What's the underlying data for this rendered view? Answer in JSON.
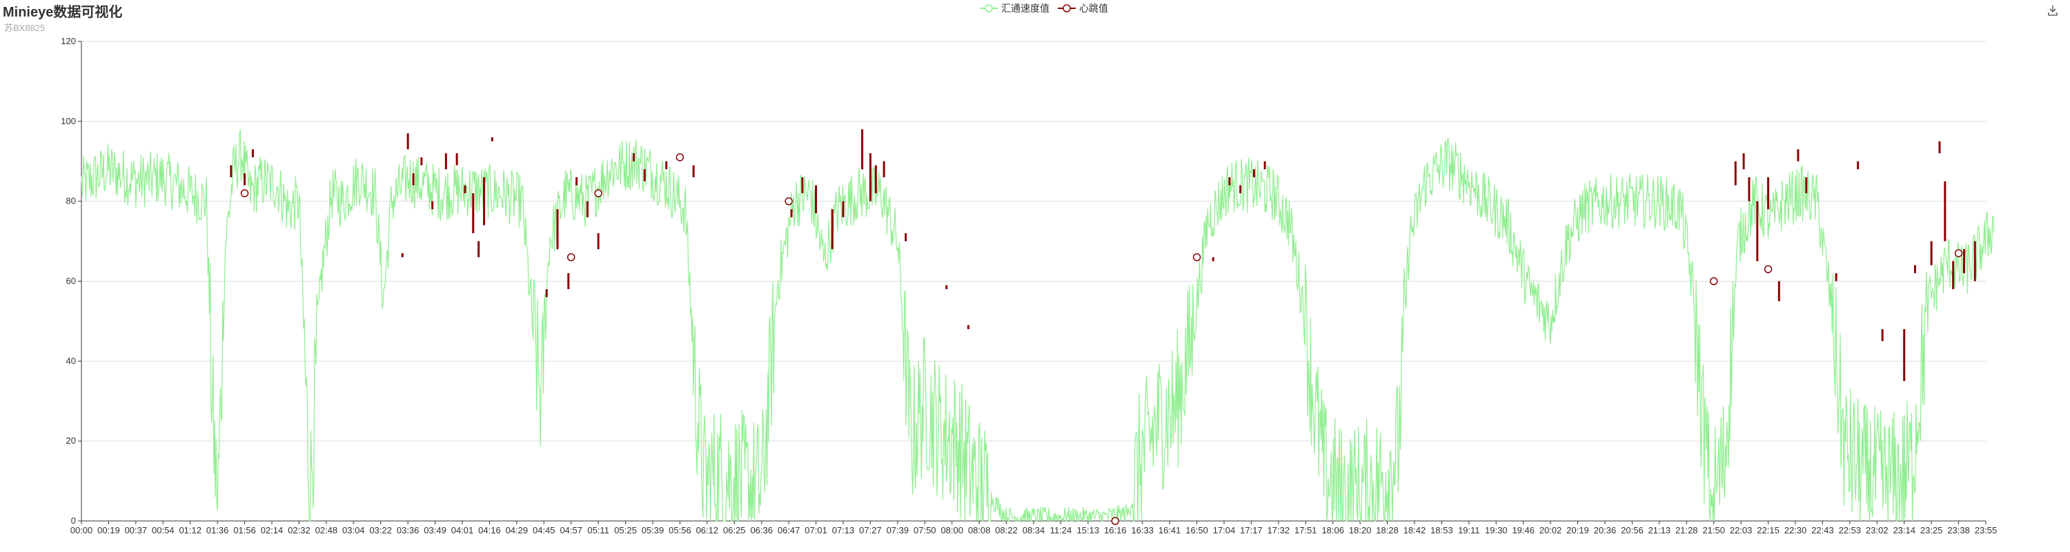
{
  "title": "Minieye数据可视化",
  "subtitle": "苏BX8825",
  "colors": {
    "speed": "#90ee90",
    "heartbeat": "#8b0000",
    "grid": "#dddddd",
    "axis": "#333333"
  },
  "icons": {
    "download": "download-icon"
  },
  "chart_data": {
    "type": "line",
    "title": "Minieye数据可视化",
    "subtitle": "苏BX8825",
    "legend_position": "top-center",
    "grid": true,
    "ylim": [
      0,
      120
    ],
    "yticks": [
      "0",
      "20",
      "40",
      "60",
      "80",
      "100",
      "120"
    ],
    "xticks": [
      "00:00",
      "00:19",
      "00:37",
      "00:54",
      "01:12",
      "01:36",
      "01:56",
      "02:14",
      "02:32",
      "02:48",
      "03:04",
      "03:22",
      "03:36",
      "03:49",
      "04:01",
      "04:16",
      "04:29",
      "04:45",
      "04:57",
      "05:11",
      "05:25",
      "05:39",
      "05:56",
      "06:12",
      "06:25",
      "06:36",
      "06:47",
      "07:01",
      "07:13",
      "07:27",
      "07:39",
      "07:50",
      "08:00",
      "08:08",
      "08:22",
      "08:34",
      "11:24",
      "15:13",
      "16:16",
      "16:33",
      "16:41",
      "16:50",
      "17:04",
      "17:17",
      "17:32",
      "17:51",
      "18:06",
      "18:20",
      "18:28",
      "18:42",
      "18:53",
      "19:11",
      "19:30",
      "19:46",
      "20:02",
      "20:19",
      "20:36",
      "20:56",
      "21:13",
      "21:28",
      "21:50",
      "22:03",
      "22:15",
      "22:30",
      "22:43",
      "22:53",
      "23:02",
      "23:14",
      "23:25",
      "23:38",
      "23:55"
    ],
    "series": [
      {
        "name": "汇通速度值",
        "color": "#90ee90",
        "profile": [
          [
            0,
            84
          ],
          [
            1,
            88
          ],
          [
            2,
            85
          ],
          [
            3,
            86
          ],
          [
            4,
            82
          ],
          [
            4.6,
            80
          ],
          [
            4.8,
            30
          ],
          [
            5.0,
            2
          ],
          [
            5.3,
            70
          ],
          [
            5.6,
            88
          ],
          [
            5.9,
            92
          ],
          [
            6.2,
            82
          ],
          [
            6.6,
            85
          ],
          [
            7.2,
            84
          ],
          [
            7.6,
            78
          ],
          [
            8.0,
            80
          ],
          [
            8.4,
            5
          ],
          [
            8.8,
            60
          ],
          [
            9.2,
            82
          ],
          [
            9.6,
            80
          ],
          [
            10.2,
            86
          ],
          [
            10.8,
            82
          ],
          [
            11.1,
            55
          ],
          [
            11.4,
            80
          ],
          [
            12,
            86
          ],
          [
            12.6,
            84
          ],
          [
            13.2,
            82
          ],
          [
            14.2,
            83
          ],
          [
            15.4,
            82
          ],
          [
            16.2,
            80
          ],
          [
            16.6,
            48
          ],
          [
            16.9,
            30
          ],
          [
            17.2,
            70
          ],
          [
            17.8,
            82
          ],
          [
            18.6,
            80
          ],
          [
            19.4,
            88
          ],
          [
            20.4,
            90
          ],
          [
            21.4,
            85
          ],
          [
            22.2,
            78
          ],
          [
            22.6,
            30
          ],
          [
            22.9,
            10
          ],
          [
            23.4,
            12
          ],
          [
            24.2,
            10
          ],
          [
            25,
            8
          ],
          [
            25.6,
            60
          ],
          [
            26.2,
            80
          ],
          [
            26.8,
            82
          ],
          [
            27.3,
            65
          ],
          [
            27.8,
            78
          ],
          [
            28.6,
            82
          ],
          [
            29.4,
            82
          ],
          [
            30,
            70
          ],
          [
            30.5,
            20
          ],
          [
            31,
            30
          ],
          [
            31.6,
            22
          ],
          [
            32.2,
            20
          ],
          [
            32.7,
            12
          ],
          [
            33.2,
            8
          ],
          [
            34,
            1
          ],
          [
            35.4,
            1
          ],
          [
            36.6,
            1
          ],
          [
            37.6,
            1
          ],
          [
            38.5,
            2
          ],
          [
            38.9,
            15
          ],
          [
            39.6,
            25
          ],
          [
            40.2,
            28
          ],
          [
            40.8,
            45
          ],
          [
            41.4,
            75
          ],
          [
            42.2,
            84
          ],
          [
            43,
            84
          ],
          [
            43.8,
            82
          ],
          [
            44.4,
            75
          ],
          [
            44.9,
            55
          ],
          [
            45.3,
            30
          ],
          [
            45.7,
            12
          ],
          [
            46.4,
            6
          ],
          [
            47.2,
            8
          ],
          [
            47.8,
            10
          ],
          [
            48.4,
            18
          ],
          [
            48.8,
            70
          ],
          [
            49.4,
            85
          ],
          [
            50.2,
            90
          ],
          [
            51,
            85
          ],
          [
            51.6,
            80
          ],
          [
            52.4,
            75
          ],
          [
            53.2,
            58
          ],
          [
            54,
            50
          ],
          [
            54.6,
            70
          ],
          [
            55.2,
            78
          ],
          [
            56,
            80
          ],
          [
            57,
            80
          ],
          [
            58,
            80
          ],
          [
            58.8,
            78
          ],
          [
            59.2,
            60
          ],
          [
            59.6,
            25
          ],
          [
            59.9,
            5
          ],
          [
            60.4,
            15
          ],
          [
            60.9,
            70
          ],
          [
            61.5,
            80
          ],
          [
            62.1,
            75
          ],
          [
            62.6,
            80
          ],
          [
            63.2,
            82
          ],
          [
            63.8,
            80
          ],
          [
            64.3,
            55
          ],
          [
            64.8,
            18
          ],
          [
            65.5,
            12
          ],
          [
            66.2,
            10
          ],
          [
            66.8,
            10
          ],
          [
            67.3,
            15
          ],
          [
            67.9,
            55
          ],
          [
            68.6,
            65
          ],
          [
            69.2,
            62
          ],
          [
            69.8,
            68
          ],
          [
            70.3,
            74
          ]
        ]
      },
      {
        "name": "心跳值",
        "color": "#8b0000",
        "points": [
          {
            "x": "01:56",
            "y": 82
          },
          {
            "x": "04:57",
            "y": 66
          },
          {
            "x": "05:11",
            "y": 82
          },
          {
            "x": "05:56",
            "y": 91
          },
          {
            "x": "06:47",
            "y": 80
          },
          {
            "x": "16:16",
            "y": 0
          },
          {
            "x": "16:50",
            "y": 66
          },
          {
            "x": "21:50",
            "y": 60
          },
          {
            "x": "22:15",
            "y": 63
          },
          {
            "x": "23:38",
            "y": 67
          }
        ],
        "bars": [
          [
            5.5,
            86,
            89
          ],
          [
            6.0,
            84,
            87
          ],
          [
            6.3,
            91,
            93
          ],
          [
            11.8,
            66,
            67
          ],
          [
            12.0,
            93,
            97
          ],
          [
            12.2,
            84,
            87
          ],
          [
            12.5,
            89,
            91
          ],
          [
            12.9,
            78,
            80
          ],
          [
            13.4,
            88,
            92
          ],
          [
            13.8,
            89,
            92
          ],
          [
            14.1,
            82,
            84
          ],
          [
            14.4,
            72,
            82
          ],
          [
            14.6,
            66,
            70
          ],
          [
            14.8,
            74,
            86
          ],
          [
            15.1,
            95,
            96
          ],
          [
            17.1,
            56,
            58
          ],
          [
            17.5,
            68,
            78
          ],
          [
            17.9,
            58,
            62
          ],
          [
            18.2,
            84,
            86
          ],
          [
            18.6,
            76,
            80
          ],
          [
            19.0,
            68,
            72
          ],
          [
            20.3,
            90,
            92
          ],
          [
            20.7,
            85,
            88
          ],
          [
            21.5,
            88,
            90
          ],
          [
            22.5,
            86,
            89
          ],
          [
            26.1,
            76,
            78
          ],
          [
            26.5,
            82,
            86
          ],
          [
            27.0,
            77,
            84
          ],
          [
            27.6,
            68,
            78
          ],
          [
            28.0,
            76,
            80
          ],
          [
            28.7,
            88,
            98
          ],
          [
            29.0,
            80,
            92
          ],
          [
            29.2,
            82,
            89
          ],
          [
            29.5,
            86,
            90
          ],
          [
            30.3,
            70,
            72
          ],
          [
            31.8,
            58,
            59
          ],
          [
            32.6,
            48,
            49
          ],
          [
            41.6,
            65,
            66
          ],
          [
            42.2,
            84,
            86
          ],
          [
            42.6,
            82,
            84
          ],
          [
            43.1,
            86,
            88
          ],
          [
            43.5,
            88,
            90
          ],
          [
            60.8,
            84,
            90
          ],
          [
            61.1,
            88,
            92
          ],
          [
            61.3,
            80,
            86
          ],
          [
            61.6,
            65,
            80
          ],
          [
            62.0,
            78,
            86
          ],
          [
            62.4,
            55,
            60
          ],
          [
            63.1,
            90,
            93
          ],
          [
            63.4,
            82,
            86
          ],
          [
            64.5,
            60,
            62
          ],
          [
            65.3,
            88,
            90
          ],
          [
            66.2,
            45,
            48
          ],
          [
            67.0,
            35,
            48
          ],
          [
            67.4,
            62,
            64
          ],
          [
            68.0,
            64,
            70
          ],
          [
            68.3,
            92,
            95
          ],
          [
            68.5,
            70,
            85
          ],
          [
            68.8,
            58,
            65
          ],
          [
            69.2,
            62,
            68
          ],
          [
            69.6,
            60,
            70
          ]
        ]
      }
    ]
  }
}
